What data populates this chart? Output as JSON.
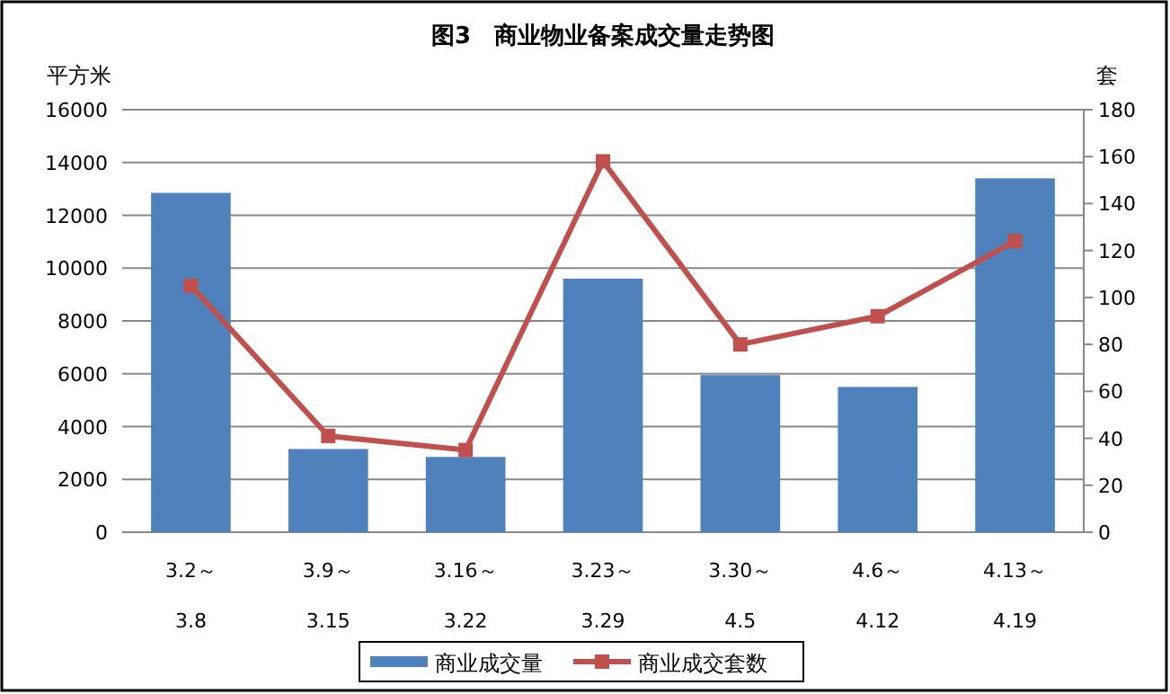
{
  "chart_data": {
    "type": "bar",
    "title": "图3　商业物业备案成交量走势图",
    "ylabel": "平方米",
    "y2label": "套",
    "categories": [
      "3.2～\n3.8",
      "3.9～\n3.15",
      "3.16～\n3.22",
      "3.23～\n3.29",
      "3.30～\n4.5",
      "4.6～\n4.12",
      "4.13～\n4.19"
    ],
    "series": [
      {
        "name": "商业成交量",
        "color": "#4f81bd",
        "values": [
          12850,
          3150,
          2850,
          9600,
          5950,
          5500,
          13400
        ]
      },
      {
        "name": "商业成交套数",
        "type": "line",
        "axis": "y2",
        "color": "#c0504d",
        "marker": "square",
        "values": [
          105,
          41,
          35,
          158,
          80,
          92,
          124
        ]
      }
    ],
    "ylim": [
      0,
      16000
    ],
    "yticks": [
      0,
      2000,
      4000,
      6000,
      8000,
      10000,
      12000,
      14000,
      16000
    ],
    "y2lim": [
      0,
      180
    ],
    "y2ticks": [
      0,
      20,
      40,
      60,
      80,
      100,
      120,
      140,
      160,
      180
    ],
    "grid": "y",
    "legend": "bottom"
  }
}
